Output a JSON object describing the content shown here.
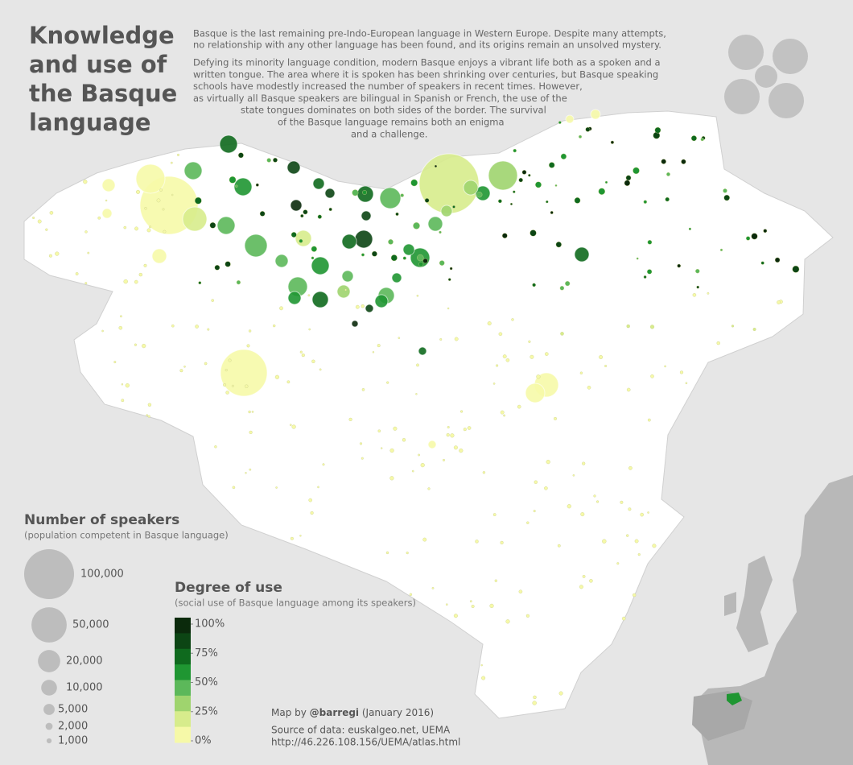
{
  "title_lines": [
    "Knowledge",
    "and use of",
    "the Basque",
    "language"
  ],
  "intro": {
    "paragraph_1": [
      "Basque is the last remaining pre-Indo-European language in Western Europe. Despite many attempts,",
      "no relationship with any other language has been found, and its origins remain an unsolved mystery."
    ],
    "paragraph_2": [
      "Defying its minority language condition, modern Basque enjoys a vibrant life both as a spoken and a",
      "written tongue. The area where it is spoken has been shrinking over centuries, but Basque speaking",
      "schools have modestly increased the number of speakers in recent times. However,",
      "as virtually all Basque speakers are bilingual in Spanish or French, the use of the",
      "state tongues dominates on both sides of the border. The survival",
      "of the Basque language remains both an enigma",
      "and a challenge."
    ]
  },
  "speakers_legend": {
    "title": "Number of speakers",
    "subtitle": "(population competent in Basque language)",
    "color": "#bdbdbd",
    "items": [
      {
        "value": 100000,
        "label": "100,000"
      },
      {
        "value": 50000,
        "label": "50,000"
      },
      {
        "value": 20000,
        "label": "20,000"
      },
      {
        "value": 10000,
        "label": "10,000"
      },
      {
        "value": 5000,
        "label": "5,000"
      },
      {
        "value": 2000,
        "label": "2,000"
      },
      {
        "value": 1000,
        "label": "1,000"
      }
    ]
  },
  "use_legend": {
    "title": "Degree of use",
    "subtitle": "(social use of Basque language among its speakers)",
    "colors": [
      "#0b2a0c",
      "#0c4514",
      "#0f6a1e",
      "#1f9632",
      "#5cb85a",
      "#9fd46e",
      "#d7ec8c",
      "#f6f9a8"
    ],
    "ticks": [
      {
        "value": 100,
        "label": "100%"
      },
      {
        "value": 75,
        "label": "75%"
      },
      {
        "value": 50,
        "label": "50%"
      },
      {
        "value": 25,
        "label": "25%"
      },
      {
        "value": 0,
        "label": "0%"
      }
    ]
  },
  "credits": {
    "map_by": [
      "Map by ",
      "@barregi",
      " (January 2016)"
    ],
    "source": [
      "Source of data: euskalgeo.net, UEMA",
      "http://46.226.108.156/UEMA/atlas.html"
    ]
  }
}
